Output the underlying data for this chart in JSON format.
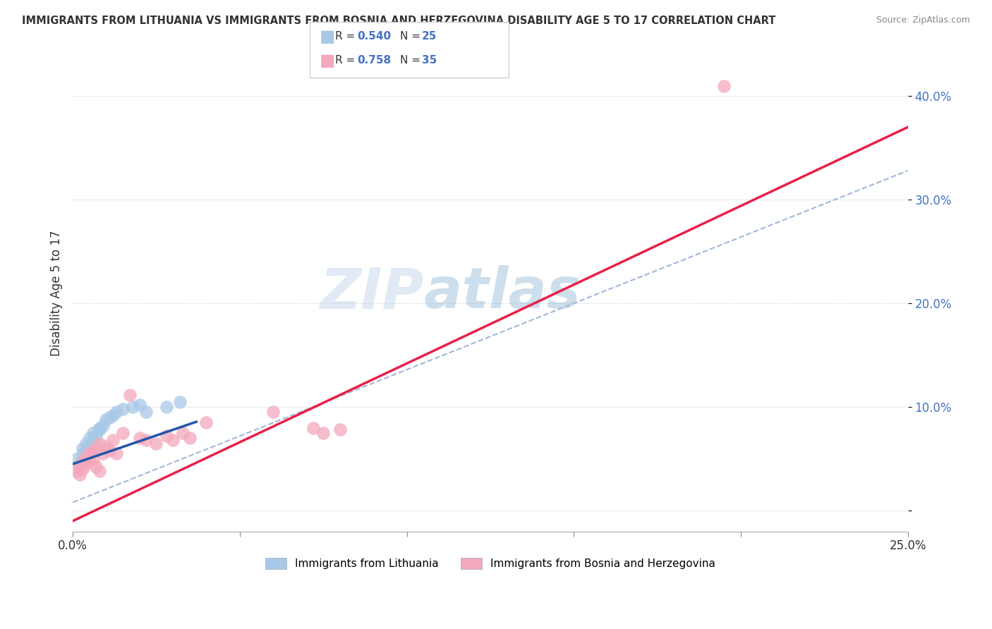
{
  "title": "IMMIGRANTS FROM LITHUANIA VS IMMIGRANTS FROM BOSNIA AND HERZEGOVINA DISABILITY AGE 5 TO 17 CORRELATION CHART",
  "source": "Source: ZipAtlas.com",
  "ylabel": "Disability Age 5 to 17",
  "xlim": [
    0,
    0.25
  ],
  "ylim": [
    -0.02,
    0.44
  ],
  "yticks": [
    0.0,
    0.1,
    0.2,
    0.3,
    0.4
  ],
  "yticklabels": [
    "",
    "10.0%",
    "20.0%",
    "30.0%",
    "40.0%"
  ],
  "legend_label1": "Immigrants from Lithuania",
  "legend_label2": "Immigrants from Bosnia and Herzegovina",
  "R1": "0.540",
  "N1": "25",
  "R2": "0.758",
  "N2": "35",
  "color1": "#a8c8e8",
  "color2": "#f4a8bc",
  "line_color1": "#2255aa",
  "line_color2": "#e8204a",
  "dash_color": "#a0b8d8",
  "watermark_color": "#c8d8ec",
  "blue_scatter_x": [
    0.001,
    0.002,
    0.003,
    0.003,
    0.004,
    0.004,
    0.005,
    0.005,
    0.006,
    0.006,
    0.007,
    0.007,
    0.008,
    0.008,
    0.009,
    0.01,
    0.011,
    0.012,
    0.013,
    0.015,
    0.018,
    0.02,
    0.022,
    0.028,
    0.032
  ],
  "blue_scatter_y": [
    0.05,
    0.045,
    0.06,
    0.055,
    0.065,
    0.058,
    0.07,
    0.062,
    0.075,
    0.068,
    0.072,
    0.06,
    0.08,
    0.078,
    0.082,
    0.088,
    0.09,
    0.092,
    0.095,
    0.098,
    0.1,
    0.102,
    0.095,
    0.1,
    0.105
  ],
  "pink_scatter_x": [
    0.001,
    0.002,
    0.002,
    0.003,
    0.003,
    0.004,
    0.004,
    0.005,
    0.005,
    0.006,
    0.006,
    0.007,
    0.007,
    0.008,
    0.008,
    0.009,
    0.01,
    0.011,
    0.012,
    0.013,
    0.015,
    0.017,
    0.02,
    0.022,
    0.025,
    0.028,
    0.03,
    0.033,
    0.035,
    0.04,
    0.06,
    0.072,
    0.075,
    0.08,
    0.195
  ],
  "pink_scatter_y": [
    0.038,
    0.042,
    0.035,
    0.048,
    0.04,
    0.052,
    0.045,
    0.055,
    0.048,
    0.058,
    0.05,
    0.06,
    0.042,
    0.038,
    0.065,
    0.055,
    0.062,
    0.058,
    0.068,
    0.055,
    0.075,
    0.112,
    0.07,
    0.068,
    0.065,
    0.072,
    0.068,
    0.075,
    0.07,
    0.085,
    0.095,
    0.08,
    0.075,
    0.078,
    0.41
  ],
  "blue_line_x": [
    0.0,
    0.09
  ],
  "blue_line_slope": 1.1,
  "blue_line_intercept": 0.045,
  "pink_line_slope": 1.52,
  "pink_line_intercept": -0.01,
  "dash_line_slope": 1.28,
  "dash_line_intercept": 0.008
}
